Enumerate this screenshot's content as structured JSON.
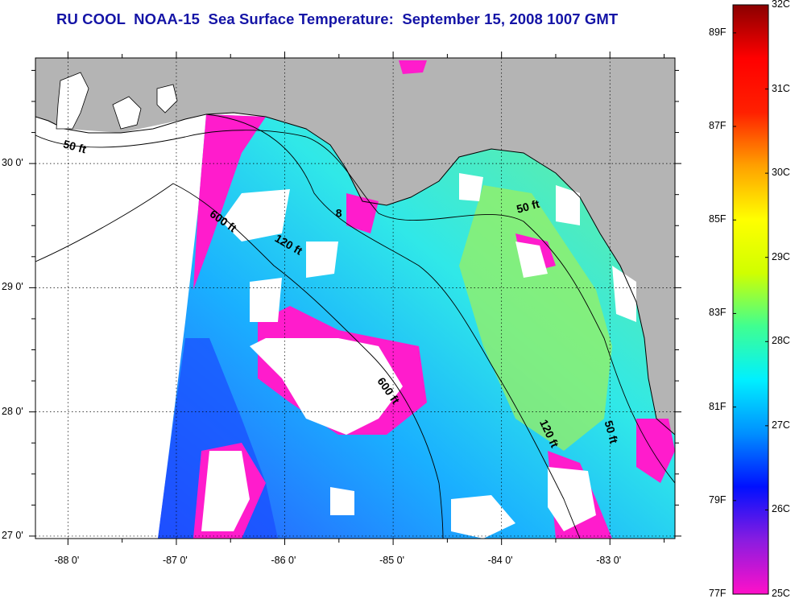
{
  "title": "RU COOL  NOAA-15  Sea Surface Temperature:  September 15, 2008 1007 GMT",
  "map": {
    "lon_range": [
      -88.3,
      -82.4
    ],
    "lat_range": [
      26.98,
      30.85
    ],
    "lon_ticks": [
      {
        "value": -88,
        "label": "-88 0'"
      },
      {
        "value": -87,
        "label": "-87 0'"
      },
      {
        "value": -86,
        "label": "-86 0'"
      },
      {
        "value": -85,
        "label": "-85 0'"
      },
      {
        "value": -84,
        "label": "-84 0'"
      },
      {
        "value": -83,
        "label": "-83 0'"
      }
    ],
    "lat_ticks": [
      {
        "value": 30,
        "label": "30 0'"
      },
      {
        "value": 29,
        "label": "29 0'"
      },
      {
        "value": 28,
        "label": "28 0'"
      },
      {
        "value": 27,
        "label": "27 0'"
      }
    ],
    "grid": "dotted",
    "land_color": "#b4b4b4",
    "no_data_color": "#ffffff",
    "contour_labels": [
      {
        "text": "50 ft",
        "lon": -88.05,
        "lat": 30.13,
        "angle": 15
      },
      {
        "text": "600 ft",
        "lon": -86.7,
        "lat": 29.58,
        "angle": 35
      },
      {
        "text": "120 ft",
        "lon": -86.1,
        "lat": 29.38,
        "angle": 30
      },
      {
        "text": "50 ft",
        "lon": -83.85,
        "lat": 29.6,
        "angle": -15
      },
      {
        "text": "600 ft",
        "lon": -85.15,
        "lat": 28.25,
        "angle": 55
      },
      {
        "text": "120 ft",
        "lon": -83.65,
        "lat": 27.92,
        "angle": 65
      },
      {
        "text": "50 ft",
        "lon": -83.05,
        "lat": 27.92,
        "angle": 75
      },
      {
        "text": "8",
        "lon": -85.53,
        "lat": 29.57,
        "angle": 0
      }
    ]
  },
  "colorbar": {
    "celsius": [
      {
        "value": 32,
        "label": "32C"
      },
      {
        "value": 31,
        "label": "31C"
      },
      {
        "value": 30,
        "label": "30C"
      },
      {
        "value": 29,
        "label": "29C"
      },
      {
        "value": 28,
        "label": "28C"
      },
      {
        "value": 27,
        "label": "27C"
      },
      {
        "value": 26,
        "label": "26C"
      },
      {
        "value": 25,
        "label": "25C"
      }
    ],
    "fahrenheit": [
      {
        "value": 89,
        "label": "89F"
      },
      {
        "value": 87,
        "label": "87F"
      },
      {
        "value": 85,
        "label": "85F"
      },
      {
        "value": 83,
        "label": "83F"
      },
      {
        "value": 81,
        "label": "81F"
      },
      {
        "value": 79,
        "label": "79F"
      },
      {
        "value": 77,
        "label": "77F"
      }
    ],
    "colors": [
      "#ff10c8",
      "#8a1ce0",
      "#0010ff",
      "#0090ff",
      "#00f0ff",
      "#40ff90",
      "#d0ff00",
      "#ffff00",
      "#ffa000",
      "#ff2000",
      "#ff0000",
      "#8a0000"
    ]
  }
}
